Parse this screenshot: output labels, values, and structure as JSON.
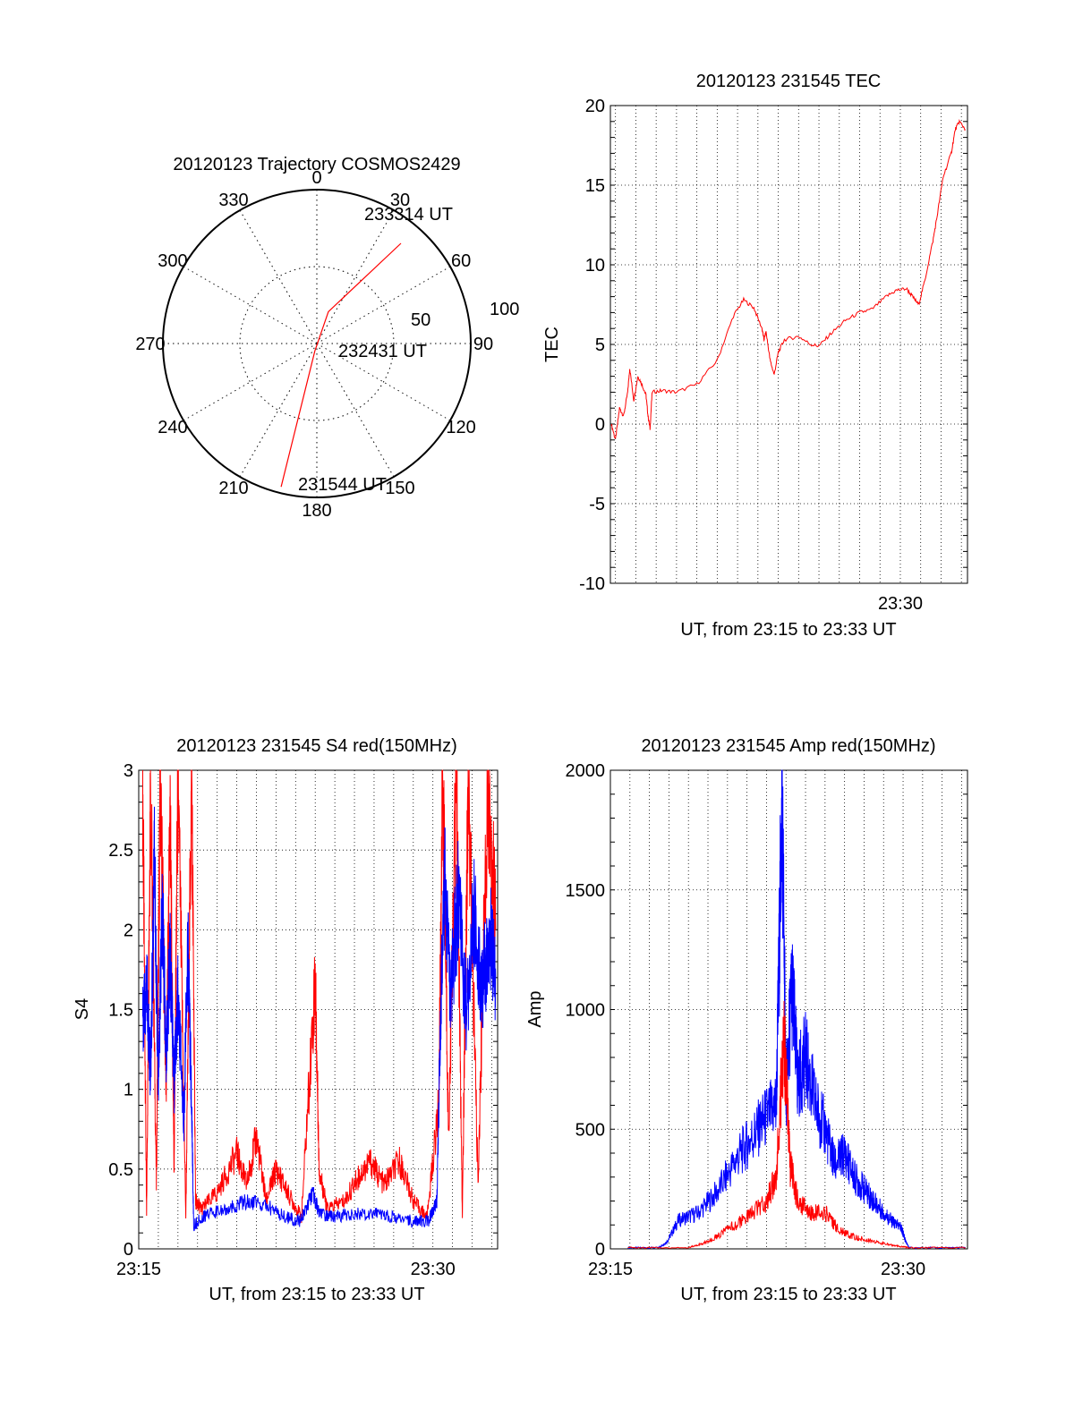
{
  "colors": {
    "red": "#ff0000",
    "blue": "#0000ff",
    "grid": "#000000"
  },
  "chart_data": [
    {
      "type": "polar-trajectory",
      "title": "20120123 Trajectory COSMOS2429",
      "azimuth_ticks": [
        "0",
        "30",
        "60",
        "90",
        "120",
        "150",
        "180",
        "210",
        "240",
        "270",
        "300",
        "330"
      ],
      "elevation_ring_labels": [
        "100",
        "50"
      ],
      "annotations": [
        "233314 UT",
        "232431 UT",
        "231544 UT"
      ],
      "series": [
        {
          "name": "",
          "color": "red",
          "points": [
            {
              "az": 40,
              "zen": 85
            },
            {
              "az": 20,
              "zen": 22
            },
            {
              "az": 195,
              "zen": 5
            },
            {
              "az": 194,
              "zen": 96
            }
          ]
        }
      ]
    },
    {
      "type": "line",
      "title": "20120123 231545 TEC",
      "xlabel": "UT, from 23:15 to 23:33 UT",
      "ylabel": "TEC",
      "xlim": [
        15.75,
        33.3
      ],
      "ylim": [
        -10,
        20
      ],
      "yticks": [
        "20",
        "15",
        "10",
        "5",
        "0",
        "-5",
        "-10"
      ],
      "xticks": [
        {
          "x": 30,
          "label": "23:30"
        }
      ],
      "series": [
        {
          "name": "",
          "color": "red",
          "points": [
            [
              15.8,
              0
            ],
            [
              16,
              -1
            ],
            [
              16.2,
              1
            ],
            [
              16.4,
              0.5
            ],
            [
              16.6,
              2
            ],
            [
              16.7,
              3.5
            ],
            [
              16.9,
              1.5
            ],
            [
              17.1,
              3
            ],
            [
              17.3,
              2.5
            ],
            [
              17.5,
              1.8
            ],
            [
              17.6,
              0.5
            ],
            [
              17.7,
              -0.3
            ],
            [
              17.8,
              2
            ],
            [
              18.3,
              2.1
            ],
            [
              19,
              2
            ],
            [
              20,
              2.5
            ],
            [
              21,
              4
            ],
            [
              21.8,
              6.8
            ],
            [
              22.3,
              7.8
            ],
            [
              22.8,
              7.3
            ],
            [
              23.2,
              6
            ],
            [
              23.3,
              5.3
            ],
            [
              23.4,
              5.8
            ],
            [
              23.6,
              4
            ],
            [
              23.8,
              3.1
            ],
            [
              24,
              4.5
            ],
            [
              24.3,
              5.3
            ],
            [
              25,
              5.5
            ],
            [
              25.6,
              5
            ],
            [
              26,
              4.9
            ],
            [
              26.6,
              5.7
            ],
            [
              27.3,
              6.5
            ],
            [
              28,
              7
            ],
            [
              28.6,
              7.2
            ],
            [
              29.3,
              8
            ],
            [
              29.8,
              8.4
            ],
            [
              30.3,
              8.5
            ],
            [
              30.6,
              8
            ],
            [
              30.9,
              7.5
            ],
            [
              31.2,
              9
            ],
            [
              31.6,
              11.5
            ],
            [
              31.8,
              13
            ],
            [
              32.1,
              15.5
            ],
            [
              32.5,
              17
            ],
            [
              32.7,
              18.5
            ],
            [
              32.9,
              19
            ],
            [
              33.2,
              18.5
            ]
          ]
        }
      ]
    },
    {
      "type": "line",
      "title": "20120123 231545 S4 red(150MHz)",
      "xlabel": "UT, from 23:15 to 23:33 UT",
      "ylabel": "S4",
      "xlim": [
        15,
        33.3
      ],
      "ylim": [
        0,
        3
      ],
      "yticks": [
        "3",
        "2.5",
        "2",
        "1.5",
        "1",
        "0.5",
        "0"
      ],
      "xticks": [
        {
          "x": 15,
          "label": "23:15"
        },
        {
          "x": 30,
          "label": "23:30"
        }
      ],
      "series": [
        {
          "name": "",
          "color": "red",
          "points": [
            [
              15.2,
              3
            ],
            [
              15.4,
              0.2
            ],
            [
              15.6,
              3
            ],
            [
              15.9,
              0.4
            ],
            [
              16.1,
              3
            ],
            [
              16.4,
              1
            ],
            [
              16.6,
              2.8
            ],
            [
              16.8,
              0.5
            ],
            [
              17,
              3
            ],
            [
              17.4,
              0.2
            ],
            [
              17.7,
              3
            ],
            [
              17.9,
              0.3
            ],
            [
              18.2,
              0.25
            ],
            [
              19,
              0.35
            ],
            [
              20,
              0.6
            ],
            [
              20.5,
              0.4
            ],
            [
              21,
              0.7
            ],
            [
              21.5,
              0.3
            ],
            [
              22,
              0.5
            ],
            [
              22.6,
              0.35
            ],
            [
              23.3,
              0.2
            ],
            [
              24,
              1.7
            ],
            [
              24.2,
              0.5
            ],
            [
              24.6,
              0.25
            ],
            [
              25.5,
              0.3
            ],
            [
              26.2,
              0.45
            ],
            [
              26.8,
              0.55
            ],
            [
              27.5,
              0.4
            ],
            [
              28.3,
              0.55
            ],
            [
              29,
              0.3
            ],
            [
              29.7,
              0.2
            ],
            [
              30.3,
              0.9
            ],
            [
              30.5,
              3
            ],
            [
              30.8,
              0.7
            ],
            [
              31.2,
              3
            ],
            [
              31.5,
              0.2
            ],
            [
              31.8,
              3
            ],
            [
              32.3,
              0.4
            ],
            [
              32.8,
              3
            ],
            [
              33.2,
              2
            ]
          ]
        },
        {
          "name": "",
          "color": "blue",
          "points": [
            [
              15.2,
              1.4
            ],
            [
              15.4,
              1.7
            ],
            [
              15.6,
              1.1
            ],
            [
              15.8,
              2.4
            ],
            [
              16,
              1
            ],
            [
              16.2,
              2.2
            ],
            [
              16.4,
              1.2
            ],
            [
              16.6,
              1.9
            ],
            [
              16.8,
              1
            ],
            [
              17,
              1.6
            ],
            [
              17.3,
              0.8
            ],
            [
              17.5,
              1.9
            ],
            [
              17.7,
              0.9
            ],
            [
              17.8,
              0.15
            ],
            [
              18.5,
              0.22
            ],
            [
              19.5,
              0.25
            ],
            [
              20.5,
              0.3
            ],
            [
              21.5,
              0.27
            ],
            [
              22.5,
              0.2
            ],
            [
              23.2,
              0.17
            ],
            [
              23.9,
              0.35
            ],
            [
              24.2,
              0.22
            ],
            [
              25,
              0.2
            ],
            [
              26,
              0.22
            ],
            [
              27,
              0.22
            ],
            [
              28,
              0.2
            ],
            [
              29,
              0.17
            ],
            [
              29.8,
              0.18
            ],
            [
              30.2,
              0.3
            ],
            [
              30.4,
              1.5
            ],
            [
              30.6,
              2.3
            ],
            [
              30.9,
              1.6
            ],
            [
              31.3,
              2.2
            ],
            [
              31.7,
              1.5
            ],
            [
              32.1,
              2.1
            ],
            [
              32.5,
              1.6
            ],
            [
              32.9,
              2
            ],
            [
              33.2,
              1.7
            ]
          ]
        }
      ]
    },
    {
      "type": "line",
      "title": "20120123 231545 Amp red(150MHz)",
      "xlabel": "UT, from 23:15 to 23:33 UT",
      "ylabel": "Amp",
      "xlim": [
        15,
        33.3
      ],
      "ylim": [
        0,
        2000
      ],
      "yticks": [
        "2000",
        "1500",
        "1000",
        "500",
        "0"
      ],
      "xticks": [
        {
          "x": 15,
          "label": "23:15"
        },
        {
          "x": 30,
          "label": "23:30"
        }
      ],
      "series": [
        {
          "name": "",
          "color": "blue",
          "points": [
            [
              15.9,
              5
            ],
            [
              17.5,
              5
            ],
            [
              17.9,
              30
            ],
            [
              18.5,
              120
            ],
            [
              19.5,
              150
            ],
            [
              20.5,
              240
            ],
            [
              21.5,
              380
            ],
            [
              22.3,
              470
            ],
            [
              23,
              550
            ],
            [
              23.5,
              600
            ],
            [
              23.8,
              1880
            ],
            [
              24,
              650
            ],
            [
              24.3,
              1100
            ],
            [
              24.6,
              700
            ],
            [
              25,
              800
            ],
            [
              25.5,
              600
            ],
            [
              26,
              500
            ],
            [
              26.5,
              350
            ],
            [
              27,
              400
            ],
            [
              27.5,
              300
            ],
            [
              28,
              250
            ],
            [
              28.5,
              200
            ],
            [
              29,
              150
            ],
            [
              29.5,
              110
            ],
            [
              29.9,
              90
            ],
            [
              30.1,
              40
            ],
            [
              30.3,
              5
            ],
            [
              33.2,
              5
            ]
          ]
        },
        {
          "name": "",
          "color": "red",
          "points": [
            [
              15.9,
              5
            ],
            [
              19,
              5
            ],
            [
              20,
              30
            ],
            [
              21,
              80
            ],
            [
              22,
              130
            ],
            [
              23,
              200
            ],
            [
              23.5,
              300
            ],
            [
              23.9,
              900
            ],
            [
              24.2,
              350
            ],
            [
              24.6,
              200
            ],
            [
              25.3,
              150
            ],
            [
              26,
              150
            ],
            [
              26.7,
              80
            ],
            [
              27.5,
              50
            ],
            [
              28.5,
              30
            ],
            [
              29.5,
              15
            ],
            [
              30.3,
              5
            ],
            [
              33.2,
              5
            ]
          ]
        }
      ]
    }
  ]
}
